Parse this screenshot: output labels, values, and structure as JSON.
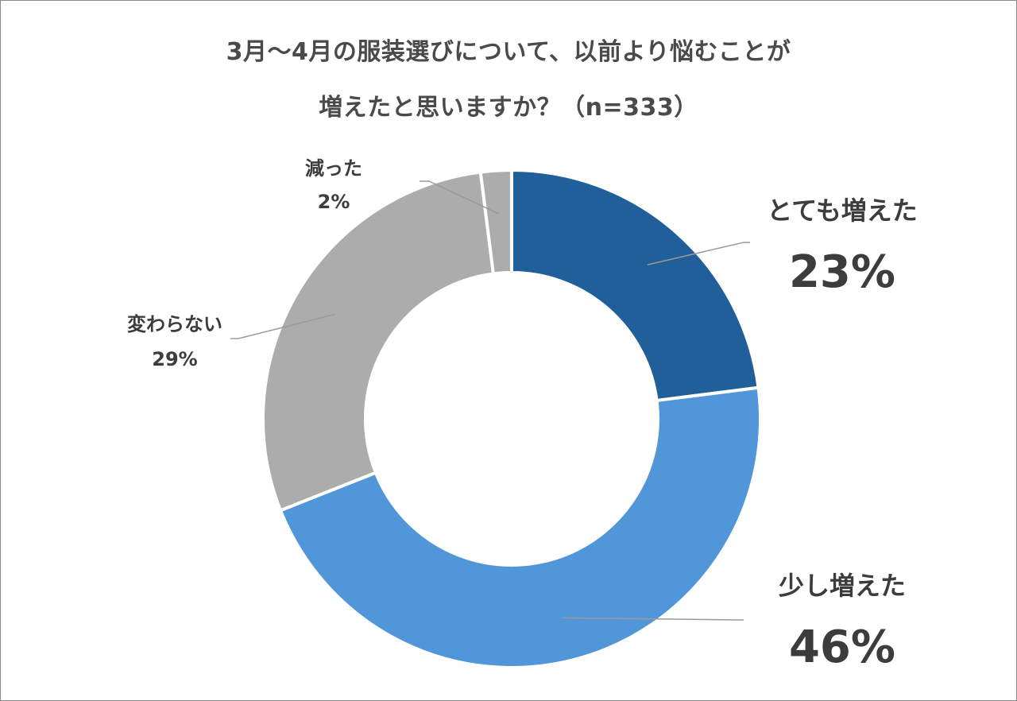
{
  "chart_data": {
    "type": "pie",
    "title_lines": [
      "3月～4月の服装選びについて、以前より悩むことが",
      "増えたと思いますか？（n=333）"
    ],
    "slices": [
      {
        "name": "とても増えた",
        "value": 23,
        "label": "23%",
        "color": "#215F9A"
      },
      {
        "name": "少し増えた",
        "value": 46,
        "label": "46%",
        "color": "#5196D8"
      },
      {
        "name": "変わらない",
        "value": 29,
        "label": "29%",
        "color": "#ACACAC"
      },
      {
        "name": "減った",
        "value": 2,
        "label": "2%",
        "color": "#ACACAC"
      }
    ],
    "donut": true,
    "legend": "none",
    "start_angle": "top, clockwise"
  }
}
